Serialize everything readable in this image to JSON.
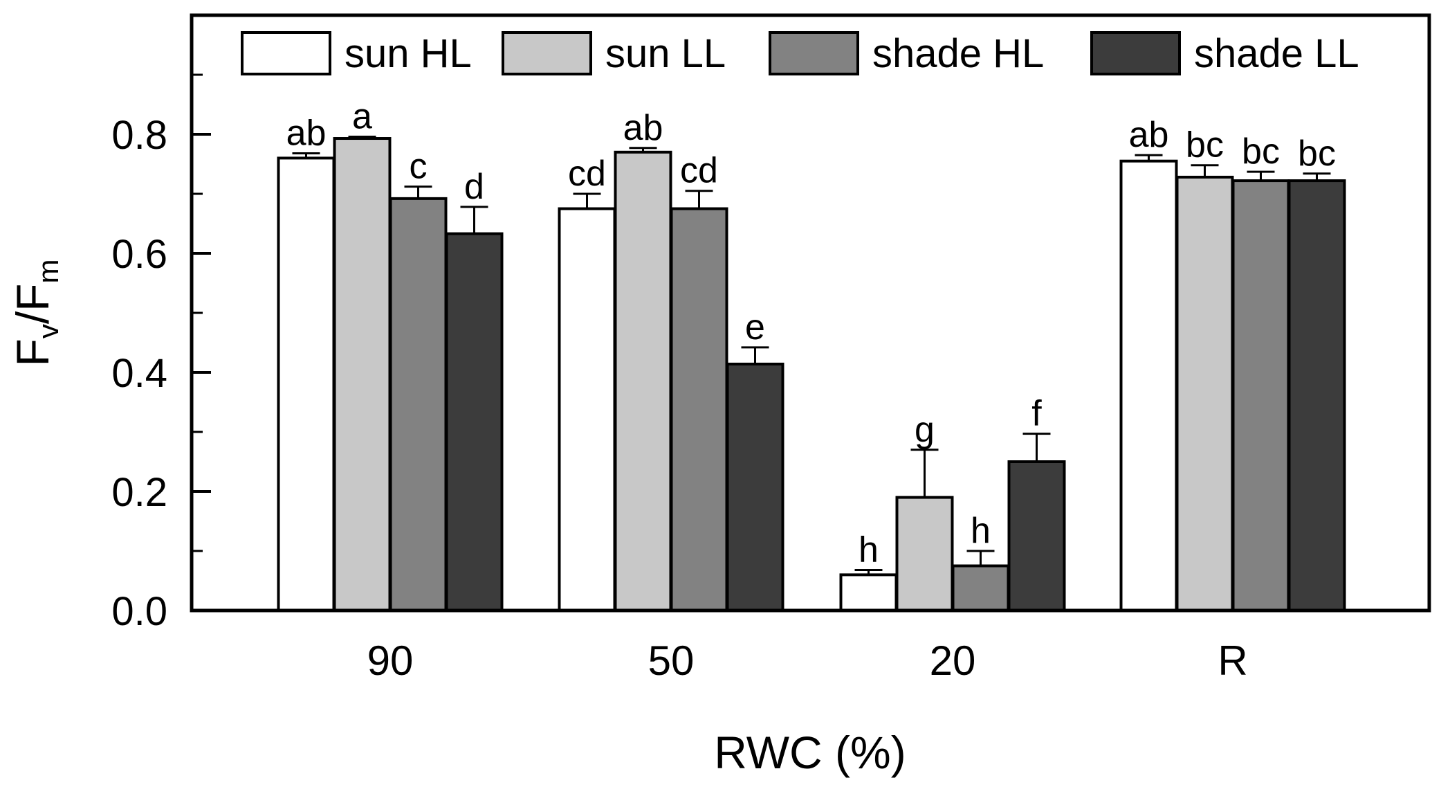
{
  "chart_data": {
    "type": "bar",
    "xlabel": "RWC (%)",
    "ylabel": {
      "main1": "F",
      "sub1": "v",
      "sep": "/F",
      "sub2": "m"
    },
    "ylim": [
      0,
      1.0
    ],
    "yticks": [
      "0.0",
      "0.2",
      "0.4",
      "0.6",
      "0.8"
    ],
    "categories": [
      "90",
      "50",
      "20",
      "R"
    ],
    "series": [
      {
        "name": "sun HL",
        "color": "#ffffff",
        "values": [
          0.76,
          0.675,
          0.06,
          0.755
        ],
        "errors": [
          0.008,
          0.025,
          0.008,
          0.01
        ],
        "labels": [
          "ab",
          "cd",
          "h",
          "ab"
        ]
      },
      {
        "name": "sun LL",
        "color": "#c8c8c8",
        "values": [
          0.793,
          0.77,
          0.19,
          0.728
        ],
        "errors": [
          0.003,
          0.007,
          0.08,
          0.02
        ],
        "labels": [
          "a",
          "ab",
          "g",
          "bc"
        ]
      },
      {
        "name": "shade HL",
        "color": "#828282",
        "values": [
          0.692,
          0.675,
          0.075,
          0.722
        ],
        "errors": [
          0.02,
          0.03,
          0.025,
          0.015
        ],
        "labels": [
          "c",
          "cd",
          "h",
          "bc"
        ]
      },
      {
        "name": "shade LL",
        "color": "#3c3c3c",
        "values": [
          0.633,
          0.414,
          0.25,
          0.722
        ],
        "errors": [
          0.045,
          0.028,
          0.047,
          0.012
        ],
        "labels": [
          "d",
          "e",
          "f",
          "bc"
        ]
      }
    ],
    "legend": "top, inside plot"
  }
}
